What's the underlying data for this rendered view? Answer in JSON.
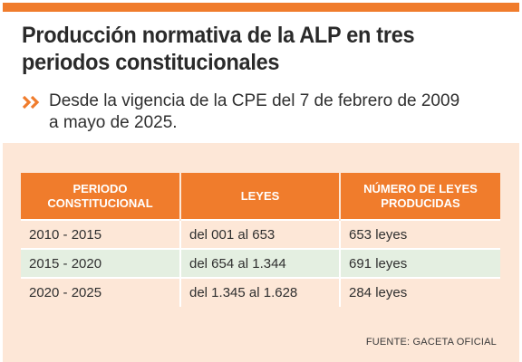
{
  "header": {
    "title_line1": "Producción normativa de la ALP en tres",
    "title_line2": "periodos constitucionales",
    "subtitle_line1": "Desde la vigencia de la CPE del 7 de febrero de 2009",
    "subtitle_line2": "a mayo de 2025.",
    "bullet_icon": "double-chevron-right-icon"
  },
  "table": {
    "headers": {
      "periodo_line1": "PERIODO",
      "periodo_line2": "CONSTITUCIONAL",
      "leyes": "LEYES",
      "numero_line1": "NÚMERO DE LEYES",
      "numero_line2": "PRODUCIDAS"
    },
    "rows": [
      {
        "periodo": "2010 - 2015",
        "leyes": "del 001 al 653",
        "numero": "653 leyes"
      },
      {
        "periodo": "2015 - 2020",
        "leyes": "del 654 al 1.344",
        "numero": "691 leyes"
      },
      {
        "periodo": "2020 - 2025",
        "leyes": "del 1.345 al 1.628",
        "numero": "284 leyes"
      }
    ]
  },
  "footer": {
    "source": "FUENTE: GACETA OFICIAL"
  },
  "colors": {
    "accent": "#f07c2c",
    "panel": "#fde7d7",
    "row_alt": "#e4efe1",
    "text": "#2f2f2f"
  }
}
